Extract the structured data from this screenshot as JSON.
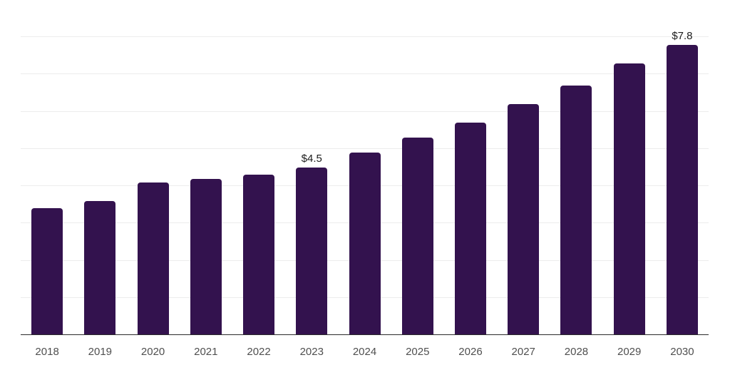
{
  "chart_data": {
    "type": "bar",
    "categories": [
      "2018",
      "2019",
      "2020",
      "2021",
      "2022",
      "2023",
      "2024",
      "2025",
      "2026",
      "2027",
      "2028",
      "2029",
      "2030"
    ],
    "values": [
      3.4,
      3.6,
      4.1,
      4.2,
      4.3,
      4.5,
      4.9,
      5.3,
      5.7,
      6.2,
      6.7,
      7.3,
      7.8
    ],
    "point_labels": [
      "",
      "",
      "",
      "",
      "",
      "$4.5",
      "",
      "",
      "",
      "",
      "",
      "",
      "$7.8"
    ],
    "title": "",
    "xlabel": "",
    "ylabel": "",
    "ylim": [
      0,
      9
    ],
    "gridline_step": 1,
    "grid": true,
    "legend_position": "none"
  },
  "colors": {
    "background": "#ffffff",
    "bar": "#33124e",
    "gridline": "#ececec",
    "axis_line": "#2b2b2b",
    "tick_label": "#4f4f4f",
    "value_label": "#1c1c1c"
  }
}
